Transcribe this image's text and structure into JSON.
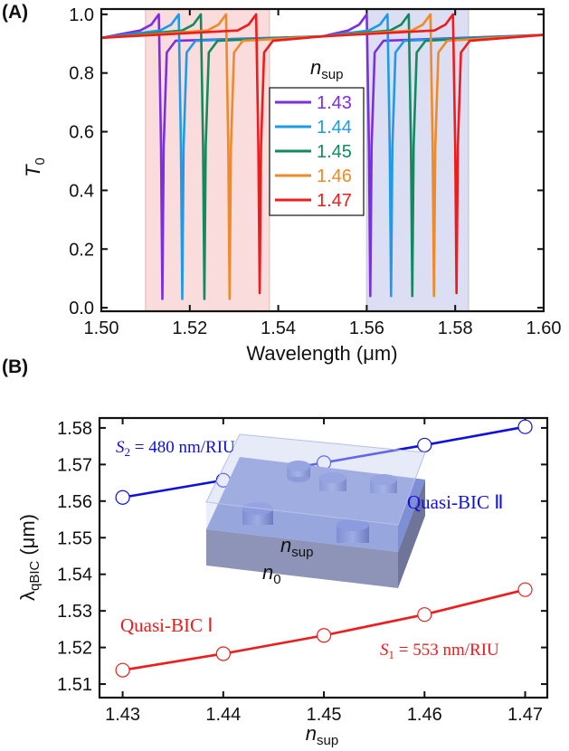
{
  "chart_data": [
    {
      "type": "line",
      "panel_label": "(A)",
      "xlabel": "Wavelength (μm)",
      "ylabel": "T",
      "ylabel_sub": "0",
      "xlim": [
        1.5,
        1.6
      ],
      "xticks": [
        {
          "value": 1.5,
          "label": "1.50"
        },
        1.52,
        1.54,
        1.56,
        1.58,
        {
          "value": 1.6,
          "label": "1.60"
        }
      ],
      "ylim": [
        -0.012,
        1.018
      ],
      "yticks": [
        {
          "value": 0,
          "label": "0.0"
        },
        0.2,
        0.4,
        0.6,
        0.8,
        {
          "value": 1,
          "label": "1.0"
        }
      ],
      "legend_title": "n",
      "legend_title_sub": "sup",
      "legend_position": "upper center",
      "shaded_regions": [
        {
          "xlim": [
            1.51,
            1.538
          ],
          "color": "#fbdcdc"
        },
        {
          "xlim": [
            1.56,
            1.583
          ],
          "color": "#dcdff4"
        }
      ],
      "series": [
        {
          "name": "1.43",
          "color": "#7b2fe0",
          "x": [
            1.5,
            1.5088,
            1.5113,
            1.513,
            1.5135,
            1.5138,
            1.5141,
            1.5148,
            1.5168,
            1.55,
            1.5558,
            1.5583,
            1.56,
            1.5605,
            1.5608,
            1.5611,
            1.5618,
            1.5638,
            1.6
          ],
          "values": [
            0.92,
            0.945,
            0.965,
            1.0,
            0.55,
            0.03,
            0.55,
            0.87,
            0.91,
            0.925,
            0.945,
            0.965,
            1.0,
            0.55,
            0.04,
            0.55,
            0.87,
            0.91,
            0.93
          ]
        },
        {
          "name": "1.44",
          "color": "#1e9be8",
          "x": [
            1.5,
            1.5133,
            1.5158,
            1.5175,
            1.518,
            1.5183,
            1.5186,
            1.5193,
            1.5213,
            1.55,
            1.5605,
            1.563,
            1.5647,
            1.5652,
            1.5655,
            1.5658,
            1.5665,
            1.5685,
            1.6
          ],
          "values": [
            0.92,
            0.945,
            0.965,
            1.0,
            0.55,
            0.03,
            0.55,
            0.87,
            0.91,
            0.925,
            0.945,
            0.965,
            1.0,
            0.55,
            0.04,
            0.55,
            0.87,
            0.91,
            0.93
          ]
        },
        {
          "name": "1.45",
          "color": "#138a5e",
          "x": [
            1.5,
            1.5183,
            1.5208,
            1.5225,
            1.523,
            1.5233,
            1.5236,
            1.5243,
            1.5263,
            1.55,
            1.5653,
            1.5678,
            1.5695,
            1.57,
            1.5703,
            1.5706,
            1.5713,
            1.5733,
            1.6
          ],
          "values": [
            0.92,
            0.945,
            0.965,
            1.0,
            0.55,
            0.03,
            0.55,
            0.87,
            0.91,
            0.925,
            0.945,
            0.965,
            1.0,
            0.55,
            0.04,
            0.55,
            0.87,
            0.91,
            0.93
          ]
        },
        {
          "name": "1.46",
          "color": "#ee8a2a",
          "x": [
            1.5,
            1.524,
            1.5265,
            1.5282,
            1.5287,
            1.529,
            1.5293,
            1.53,
            1.532,
            1.55,
            1.5702,
            1.5727,
            1.5744,
            1.5749,
            1.5752,
            1.5755,
            1.5762,
            1.5782,
            1.6
          ],
          "values": [
            0.92,
            0.945,
            0.965,
            1.0,
            0.55,
            0.03,
            0.55,
            0.87,
            0.91,
            0.925,
            0.945,
            0.965,
            1.0,
            0.55,
            0.04,
            0.55,
            0.87,
            0.91,
            0.93
          ]
        },
        {
          "name": "1.47",
          "color": "#ee1c1c",
          "x": [
            1.5,
            1.5308,
            1.5333,
            1.535,
            1.5355,
            1.5358,
            1.5361,
            1.5368,
            1.5388,
            1.55,
            1.5753,
            1.5778,
            1.5795,
            1.58,
            1.5803,
            1.5806,
            1.5813,
            1.5833,
            1.6
          ],
          "values": [
            0.92,
            0.945,
            0.965,
            1.0,
            0.55,
            0.05,
            0.55,
            0.87,
            0.91,
            0.925,
            0.945,
            0.965,
            1.0,
            0.55,
            0.05,
            0.55,
            0.87,
            0.91,
            0.93
          ]
        }
      ]
    },
    {
      "type": "scatter-line",
      "panel_label": "(B)",
      "xlabel": "n",
      "xlabel_sub": "sup",
      "ylabel": "λ",
      "ylabel_sub": "qBIC",
      "ylabel_unit": "(μm)",
      "xlim": [
        1.4277,
        1.4722
      ],
      "xticks": [
        1.43,
        1.44,
        1.45,
        1.46,
        1.47
      ],
      "ylim": [
        1.5063,
        1.5827
      ],
      "yticks": [
        1.51,
        1.52,
        1.53,
        1.54,
        1.55,
        1.56,
        1.57,
        1.58
      ],
      "series": [
        {
          "name": "Quasi-BIC Ⅱ",
          "color": "#1010e0",
          "x": [
            1.43,
            1.44,
            1.45,
            1.46,
            1.47
          ],
          "values": [
            1.561,
            1.5657,
            1.5705,
            1.5753,
            1.5803
          ]
        },
        {
          "name": "Quasi-BIC Ⅰ",
          "color": "#ee1c1c",
          "x": [
            1.43,
            1.44,
            1.45,
            1.46,
            1.47
          ],
          "values": [
            1.5138,
            1.5183,
            1.5233,
            1.529,
            1.5358
          ]
        }
      ],
      "annotations": {
        "s2": [
          "S",
          "2",
          " = 480 nm/RIU"
        ],
        "s1": [
          "S",
          "1",
          " = 553 nm/RIU"
        ]
      },
      "inset": {
        "upper": [
          "n",
          "sup"
        ],
        "lower": [
          "n",
          "0"
        ]
      }
    }
  ]
}
